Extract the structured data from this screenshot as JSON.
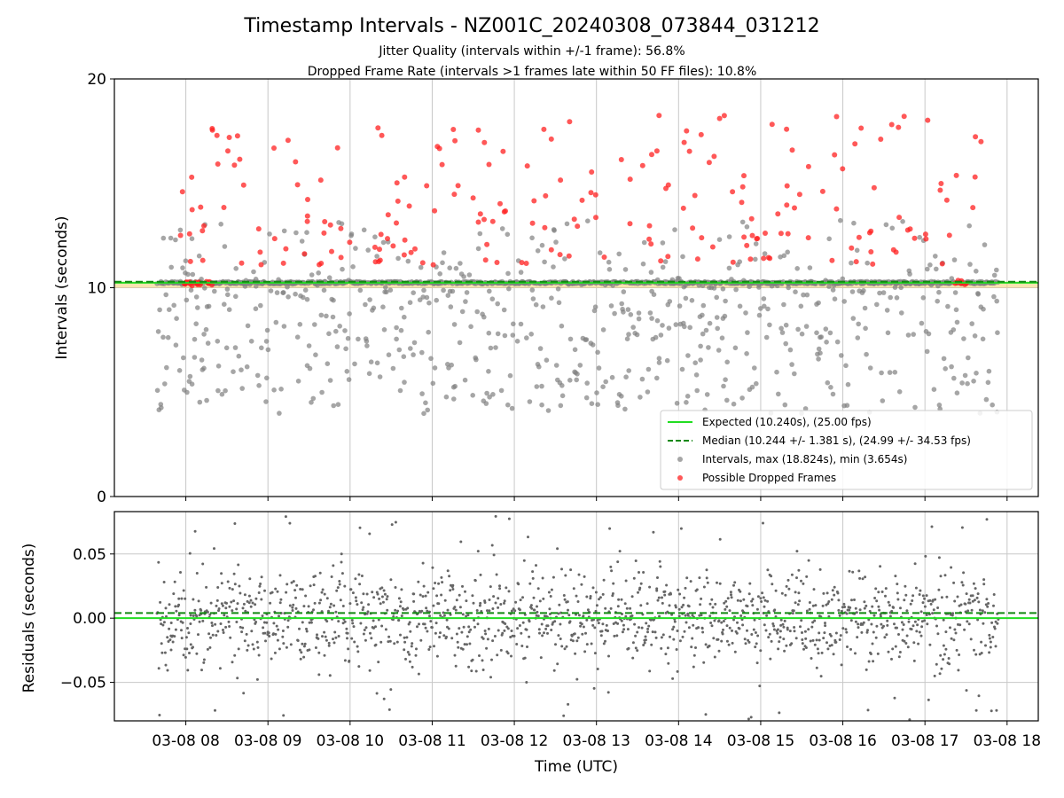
{
  "chart_data": [
    {
      "type": "scatter",
      "title": "Timestamp Intervals - NZ001C_20240308_073844_031212",
      "subtitle_lines": [
        "Jitter Quality (intervals within +/-1 frame): 56.8%",
        "Dropped Frame Rate (intervals >1 frames late within 50 FF files): 10.8%"
      ],
      "ylabel": "Intervals (seconds)",
      "ylim": [
        0,
        20
      ],
      "yticks": [
        "0",
        "10",
        "20"
      ],
      "xlim_hours": [
        7.13,
        18.38
      ],
      "grid": true,
      "legend_position": "lower-right",
      "expected_interval": 10.24,
      "median_interval": 10.244,
      "reference_band": 10.0,
      "colors": {
        "expected": "#22dd22",
        "median": "#118811",
        "intervals": "#808080",
        "dropped": "#ff2020",
        "band": "#f5d27a"
      },
      "series": [
        {
          "name": "Expected (10.240s), (25.00 fps)",
          "style": "solid-line"
        },
        {
          "name": "Median (10.244 +/- 1.381 s), (24.99 +/- 34.53 fps)",
          "style": "dashed-line"
        },
        {
          "name": "Intervals, max (18.824s), min (3.654s)",
          "style": "gray-dots"
        },
        {
          "name": "Possible Dropped Frames",
          "style": "red-dots"
        }
      ],
      "intervals_stats": {
        "max": 18.824,
        "min": 3.654
      }
    },
    {
      "type": "scatter",
      "ylabel": "Residuals (seconds)",
      "xlabel": "Time (UTC)",
      "ylim": [
        -0.08,
        0.083
      ],
      "yticks": [
        "0.05",
        "0.00",
        "−0.05"
      ],
      "ytick_values": [
        0.05,
        0.0,
        -0.05
      ],
      "xticks": [
        "03-08 08",
        "03-08 09",
        "03-08 10",
        "03-08 11",
        "03-08 12",
        "03-08 13",
        "03-08 14",
        "03-08 15",
        "03-08 16",
        "03-08 17",
        "03-08 18"
      ],
      "xtick_hours": [
        8,
        9,
        10,
        11,
        12,
        13,
        14,
        15,
        16,
        17,
        18
      ],
      "xlim_hours": [
        7.13,
        18.38
      ],
      "grid": true,
      "zero_line": 0.0,
      "median_offset": 0.004
    }
  ]
}
